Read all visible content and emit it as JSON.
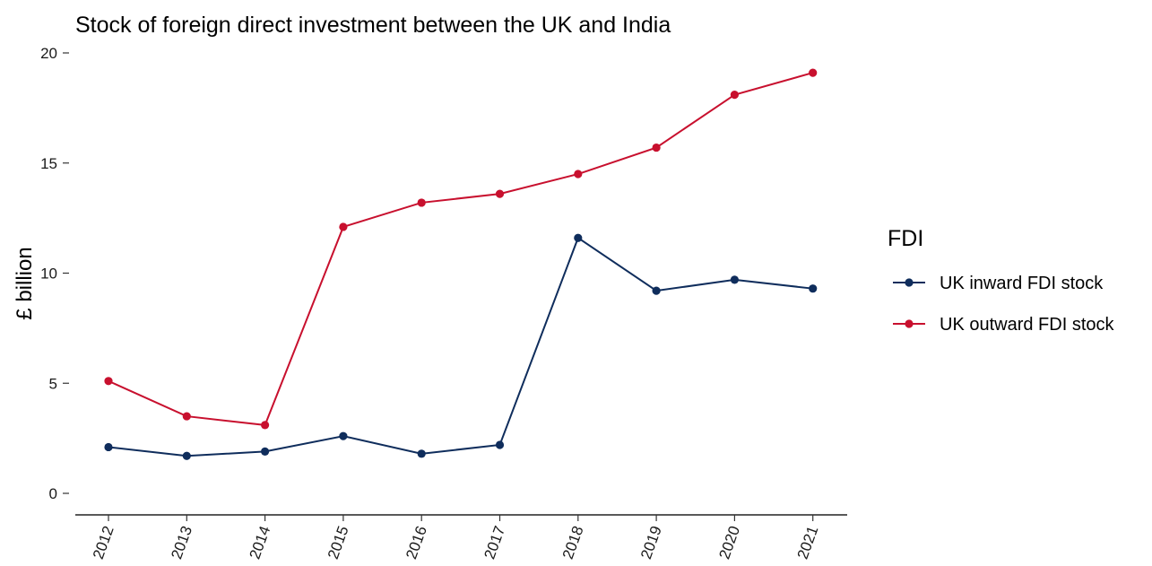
{
  "chart_data": {
    "type": "line",
    "title": "Stock of foreign direct investment between the UK and India",
    "xlabel": "",
    "ylabel": "£ billion",
    "x": [
      "2012",
      "2013",
      "2014",
      "2015",
      "2016",
      "2017",
      "2018",
      "2019",
      "2020",
      "2021"
    ],
    "ylim": [
      0,
      20
    ],
    "yticks": [
      0,
      5,
      10,
      15,
      20
    ],
    "grid": false,
    "legend": {
      "title": "FDI",
      "placement": "right"
    },
    "series": [
      {
        "name": "UK inward FDI stock",
        "color": "#0f2d5c",
        "values": [
          2.1,
          1.7,
          1.9,
          2.6,
          1.8,
          2.2,
          11.6,
          9.2,
          9.7,
          9.3
        ]
      },
      {
        "name": "UK outward FDI stock",
        "color": "#c8102e",
        "values": [
          5.1,
          3.5,
          3.1,
          12.1,
          13.2,
          13.6,
          14.5,
          15.7,
          18.1,
          19.1
        ]
      }
    ]
  }
}
